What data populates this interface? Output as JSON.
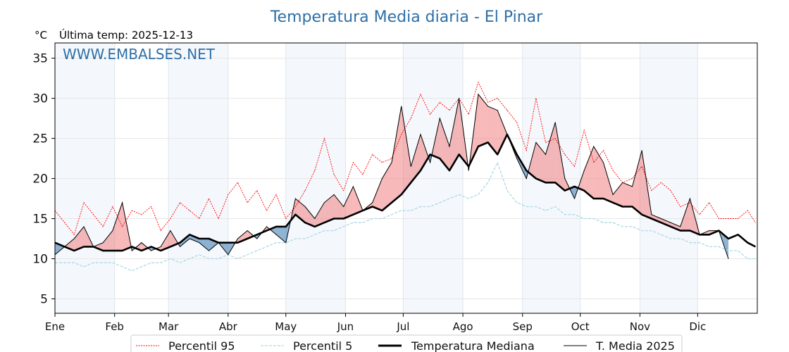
{
  "chart_data": {
    "type": "line",
    "title": "Temperatura Media diaria - El Pinar",
    "ylabel": "°C",
    "subtitle": "Última temp: 2025-12-13",
    "watermark": "WWW.EMBALSES.NET",
    "ylim": [
      3.2,
      36.9
    ],
    "yticks": [
      5,
      10,
      15,
      20,
      25,
      30,
      35
    ],
    "xlim": [
      0,
      365
    ],
    "xticks": [
      {
        "day": 0,
        "label": "Ene"
      },
      {
        "day": 31,
        "label": "Feb"
      },
      {
        "day": 59,
        "label": "Mar"
      },
      {
        "day": 90,
        "label": "Abr"
      },
      {
        "day": 120,
        "label": "May"
      },
      {
        "day": 151,
        "label": "Jun"
      },
      {
        "day": 181,
        "label": "Jul"
      },
      {
        "day": 212,
        "label": "Ago"
      },
      {
        "day": 243,
        "label": "Sep"
      },
      {
        "day": 273,
        "label": "Oct"
      },
      {
        "day": 304,
        "label": "Nov"
      },
      {
        "day": 334,
        "label": "Dic"
      }
    ],
    "grid": true,
    "legend_position": "bottom-center",
    "x_days": [
      0,
      5,
      10,
      15,
      20,
      25,
      30,
      35,
      40,
      45,
      50,
      55,
      60,
      65,
      70,
      75,
      80,
      85,
      90,
      95,
      100,
      105,
      110,
      115,
      120,
      125,
      130,
      135,
      140,
      145,
      150,
      155,
      160,
      165,
      170,
      175,
      180,
      185,
      190,
      195,
      200,
      205,
      210,
      215,
      220,
      225,
      230,
      235,
      240,
      245,
      250,
      255,
      260,
      265,
      270,
      275,
      280,
      285,
      290,
      295,
      300,
      305,
      310,
      315,
      320,
      325,
      330,
      335,
      340,
      345,
      350,
      355,
      360,
      364
    ],
    "series": [
      {
        "name": "Percentil 95",
        "color": "#ff0000",
        "style": "dotted",
        "values": [
          16.0,
          14.5,
          13.0,
          17.0,
          15.5,
          14.0,
          16.5,
          14.0,
          16.0,
          15.5,
          16.5,
          13.5,
          15.0,
          17.0,
          16.0,
          15.0,
          17.5,
          15.0,
          18.0,
          19.5,
          17.0,
          18.5,
          16.0,
          18.0,
          15.0,
          16.5,
          18.5,
          21.0,
          25.0,
          20.5,
          18.5,
          22.0,
          20.5,
          23.0,
          22.0,
          22.5,
          25.5,
          27.5,
          30.5,
          28.0,
          29.5,
          28.5,
          30.0,
          28.0,
          32.0,
          29.5,
          30.0,
          28.5,
          27.0,
          23.5,
          30.0,
          24.5,
          25.0,
          23.0,
          21.5,
          26.0,
          22.0,
          23.5,
          21.0,
          19.5,
          20.0,
          21.5,
          18.5,
          19.5,
          18.5,
          16.5,
          17.0,
          15.5,
          17.0,
          15.0,
          15.0,
          15.0,
          16.0,
          14.5
        ]
      },
      {
        "name": "Percentil 5",
        "color": "#add8e6",
        "style": "dashed",
        "values": [
          9.5,
          9.5,
          9.5,
          9.0,
          9.5,
          9.5,
          9.5,
          9.0,
          8.5,
          9.0,
          9.5,
          9.5,
          10.0,
          9.5,
          10.0,
          10.5,
          10.0,
          10.0,
          10.5,
          10.0,
          10.5,
          11.0,
          11.5,
          12.0,
          12.0,
          12.5,
          12.5,
          13.0,
          13.5,
          13.5,
          14.0,
          14.5,
          14.5,
          15.0,
          15.0,
          15.5,
          16.0,
          16.0,
          16.5,
          16.5,
          17.0,
          17.5,
          18.0,
          17.5,
          18.0,
          19.5,
          22.0,
          18.5,
          17.0,
          16.5,
          16.5,
          16.0,
          16.5,
          15.5,
          15.5,
          15.0,
          15.0,
          14.5,
          14.5,
          14.0,
          14.0,
          13.5,
          13.5,
          13.0,
          12.5,
          12.5,
          12.0,
          12.0,
          11.5,
          11.5,
          11.0,
          11.0,
          10.0,
          10.0
        ]
      },
      {
        "name": "Temperatura Mediana",
        "color": "#000000",
        "style": "solid-thick",
        "values": [
          12.0,
          11.5,
          11.0,
          11.5,
          11.5,
          11.0,
          11.0,
          11.0,
          11.5,
          11.0,
          11.5,
          11.0,
          11.5,
          12.0,
          13.0,
          12.5,
          12.5,
          12.0,
          12.0,
          12.0,
          12.5,
          13.0,
          13.5,
          14.0,
          14.0,
          15.5,
          14.5,
          14.0,
          14.5,
          15.0,
          15.0,
          15.5,
          16.0,
          16.5,
          16.0,
          17.0,
          18.0,
          19.5,
          21.0,
          23.0,
          22.5,
          21.0,
          23.0,
          21.5,
          24.0,
          24.5,
          23.0,
          25.5,
          23.0,
          21.0,
          20.0,
          19.5,
          19.5,
          18.5,
          19.0,
          18.5,
          17.5,
          17.5,
          17.0,
          16.5,
          16.5,
          15.5,
          15.0,
          14.5,
          14.0,
          13.5,
          13.5,
          13.0,
          13.0,
          13.5,
          12.5,
          13.0,
          12.0,
          11.5
        ]
      },
      {
        "name": "T. Media 2025",
        "color": "#000000",
        "style": "solid-thin",
        "values": [
          10.5,
          11.5,
          12.5,
          14.0,
          11.5,
          12.0,
          13.5,
          17.0,
          11.0,
          12.0,
          11.0,
          11.5,
          13.5,
          11.5,
          12.5,
          12.0,
          11.0,
          12.0,
          10.5,
          12.5,
          13.5,
          12.5,
          14.0,
          13.0,
          12.0,
          17.5,
          16.5,
          15.0,
          17.0,
          18.0,
          16.5,
          19.0,
          16.0,
          17.0,
          20.0,
          22.0,
          29.0,
          21.5,
          25.5,
          22.0,
          27.5,
          24.0,
          30.0,
          21.0,
          30.5,
          29.0,
          28.5,
          25.5,
          22.5,
          20.0,
          24.5,
          23.0,
          27.0,
          20.0,
          17.5,
          21.0,
          24.0,
          22.0,
          18.0,
          19.5,
          19.0,
          23.5,
          15.5,
          15.0,
          14.5,
          14.0,
          17.5,
          13.0,
          13.5,
          13.5,
          10.0,
          null,
          null,
          null
        ]
      }
    ],
    "fill_above_color": "#f08080",
    "fill_below_color": "#4682b4"
  },
  "legend": [
    {
      "label": "Percentil 95"
    },
    {
      "label": "Percentil 5"
    },
    {
      "label": "Temperatura Mediana"
    },
    {
      "label": "T. Media 2025"
    }
  ]
}
